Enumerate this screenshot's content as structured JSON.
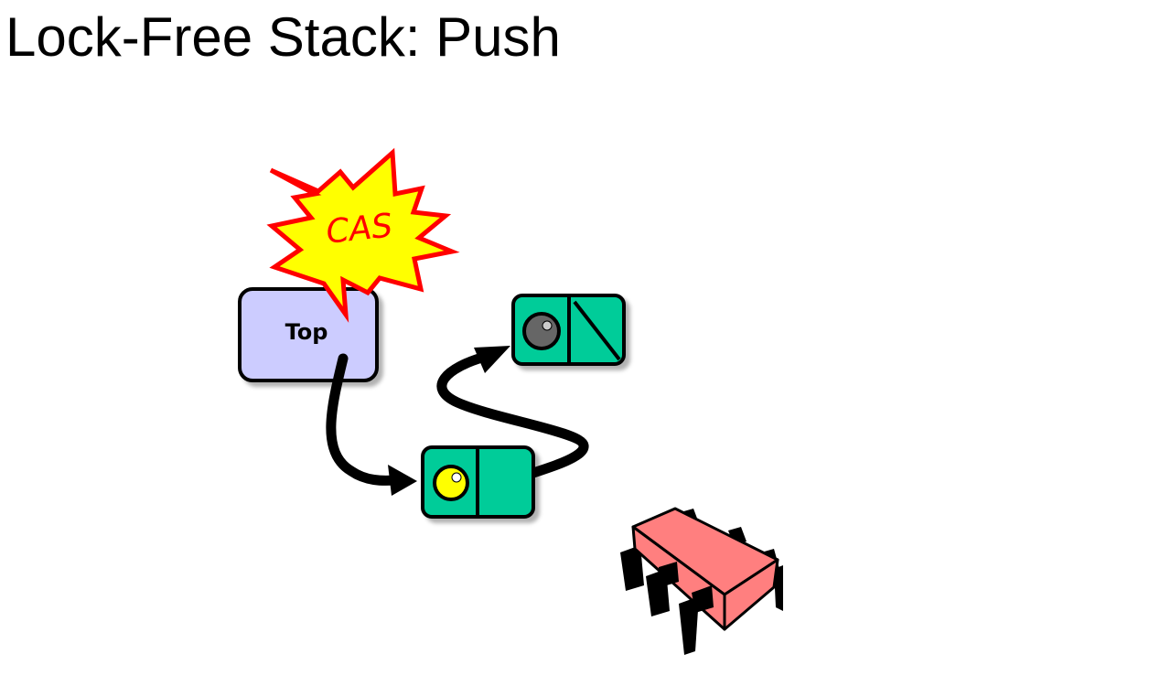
{
  "slide": {
    "title": "Lock-Free Stack: Push"
  },
  "diagram": {
    "cas_label": "CAS",
    "top_label": "Top",
    "colors": {
      "burst_fill": "#FFFF00",
      "burst_stroke": "#FF0000",
      "cas_text": "#FF0000",
      "top_fill": "#CCCCFF",
      "node_fill": "#00CC99",
      "new_node_ball": "#FFFF00",
      "old_node_ball": "#666666",
      "chip_fill": "#FF7F7F",
      "outline": "#000000"
    }
  }
}
